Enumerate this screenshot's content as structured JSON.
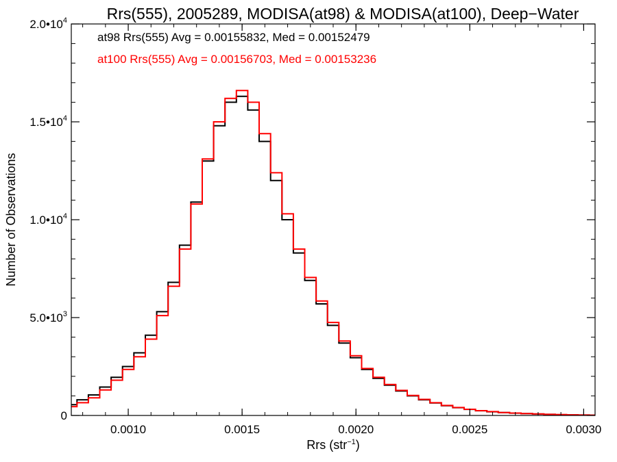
{
  "chart_data": {
    "type": "line",
    "title": "Rrs(555), 2005289, MODISA(at98) & MODISA(at100), Deep−Water",
    "xlabel": "Rrs (str",
    "xlabel_sup": "−1",
    "xlabel_end": ")",
    "ylabel": "Number of Observations",
    "xlim": [
      0.00075,
      0.00305
    ],
    "ylim": [
      0,
      20000
    ],
    "xticks": [
      {
        "value": 0.001,
        "label": "0.0010"
      },
      {
        "value": 0.0015,
        "label": "0.0015"
      },
      {
        "value": 0.002,
        "label": "0.0020"
      },
      {
        "value": 0.0025,
        "label": "0.0025"
      },
      {
        "value": 0.003,
        "label": "0.0030"
      }
    ],
    "yticks": [
      {
        "value": 0,
        "mant": "0",
        "exp": ""
      },
      {
        "value": 5000,
        "mant": "5.0•10",
        "exp": "3"
      },
      {
        "value": 10000,
        "mant": "1.0•10",
        "exp": "4"
      },
      {
        "value": 15000,
        "mant": "1.5•10",
        "exp": "4"
      },
      {
        "value": 20000,
        "mant": "2.0•10",
        "exp": "4"
      }
    ],
    "annotations": [
      "at98 Rrs(555) Avg = 0.00155832, Med = 0.00152479",
      "at100 Rrs(555) Avg = 0.00156703, Med = 0.00153236"
    ],
    "series": [
      {
        "name": "at98",
        "color": "#000000",
        "x": [
          0.00075,
          0.0008,
          0.00085,
          0.0009,
          0.00095,
          0.001,
          0.00105,
          0.0011,
          0.00115,
          0.0012,
          0.00125,
          0.0013,
          0.00135,
          0.0014,
          0.00145,
          0.0015,
          0.00155,
          0.0016,
          0.00165,
          0.0017,
          0.00175,
          0.0018,
          0.00185,
          0.0019,
          0.00195,
          0.002,
          0.00205,
          0.0021,
          0.00215,
          0.0022,
          0.00225,
          0.0023,
          0.00235,
          0.0024,
          0.00245,
          0.0025,
          0.00255,
          0.0026,
          0.00265,
          0.0027,
          0.00275,
          0.0028,
          0.00285,
          0.0029,
          0.00295,
          0.003,
          0.00305
        ],
        "y": [
          550,
          800,
          1050,
          1450,
          1950,
          2500,
          3200,
          4100,
          5300,
          6800,
          8700,
          10900,
          13000,
          14800,
          16000,
          16300,
          15600,
          14000,
          12000,
          10000,
          8300,
          6900,
          5700,
          4600,
          3700,
          2950,
          2350,
          1900,
          1550,
          1250,
          1000,
          800,
          640,
          500,
          400,
          310,
          240,
          190,
          150,
          120,
          95,
          75,
          55,
          40,
          30,
          20,
          15
        ]
      },
      {
        "name": "at100",
        "color": "#ff0000",
        "x": [
          0.00075,
          0.0008,
          0.00085,
          0.0009,
          0.00095,
          0.001,
          0.00105,
          0.0011,
          0.00115,
          0.0012,
          0.00125,
          0.0013,
          0.00135,
          0.0014,
          0.00145,
          0.0015,
          0.00155,
          0.0016,
          0.00165,
          0.0017,
          0.00175,
          0.0018,
          0.00185,
          0.0019,
          0.00195,
          0.002,
          0.00205,
          0.0021,
          0.00215,
          0.0022,
          0.00225,
          0.0023,
          0.00235,
          0.0024,
          0.00245,
          0.0025,
          0.00255,
          0.0026,
          0.00265,
          0.0027,
          0.00275,
          0.0028,
          0.00285,
          0.0029,
          0.00295,
          0.003,
          0.00305
        ],
        "y": [
          450,
          650,
          900,
          1300,
          1800,
          2350,
          3000,
          3900,
          5100,
          6600,
          8500,
          10800,
          13100,
          15000,
          16200,
          16600,
          16000,
          14400,
          12400,
          10300,
          8500,
          7050,
          5850,
          4750,
          3800,
          3050,
          2400,
          1950,
          1580,
          1280,
          1020,
          820,
          650,
          510,
          405,
          315,
          245,
          195,
          152,
          122,
          96,
          76,
          56,
          41,
          31,
          21,
          15
        ]
      }
    ]
  }
}
